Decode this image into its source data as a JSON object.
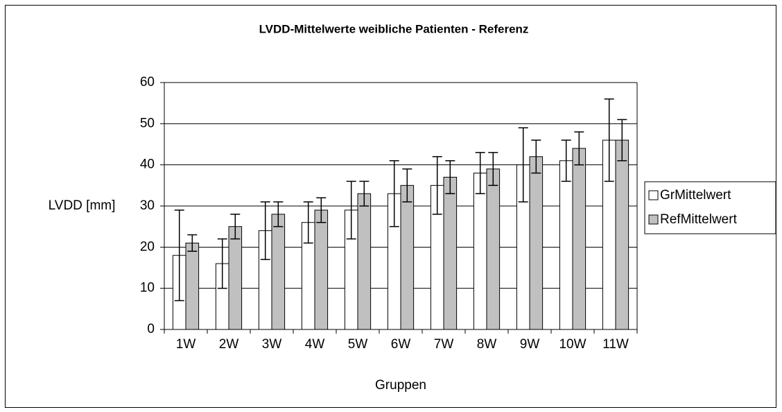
{
  "chart_data": {
    "type": "bar",
    "title": "LVDD-Mittelwerte weibliche Patienten - Referenz",
    "x_label": "Gruppen",
    "y_label": "LVDD [mm]",
    "categories": [
      "1W",
      "2W",
      "3W",
      "4W",
      "5W",
      "6W",
      "7W",
      "8W",
      "9W",
      "10W",
      "11W"
    ],
    "series": [
      {
        "name": "GrMittelwert",
        "color": "#ffffff",
        "values": [
          18,
          16,
          24,
          26,
          29,
          33,
          35,
          38,
          40,
          41,
          46
        ],
        "errors": [
          11,
          6,
          7,
          5,
          7,
          8,
          7,
          5,
          9,
          5,
          10
        ]
      },
      {
        "name": "RefMittelwert",
        "color": "#c0c0c0",
        "values": [
          21,
          25,
          28,
          29,
          33,
          35,
          37,
          39,
          42,
          44,
          46
        ],
        "errors": [
          2,
          3,
          3,
          3,
          3,
          4,
          4,
          4,
          4,
          4,
          5
        ]
      }
    ],
    "ylim": [
      0,
      60
    ],
    "yticks": [
      0,
      10,
      20,
      30,
      40,
      50,
      60
    ],
    "grid": true,
    "legend": "right"
  }
}
